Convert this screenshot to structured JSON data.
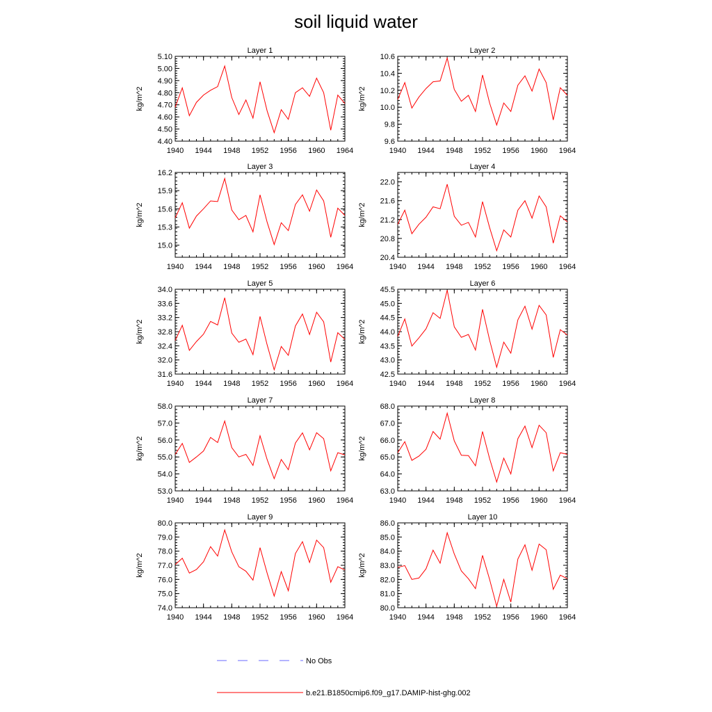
{
  "chart_data": {
    "type": "line",
    "title": "soil liquid water",
    "ylabel": "kg/m^2",
    "x_range": [
      1940,
      1964
    ],
    "x_ticks": [
      "1940",
      "1944",
      "1948",
      "1952",
      "1956",
      "1960",
      "1964"
    ],
    "years": [
      1940,
      1941,
      1942,
      1943,
      1944,
      1945,
      1946,
      1947,
      1948,
      1949,
      1950,
      1951,
      1952,
      1953,
      1954,
      1955,
      1956,
      1957,
      1958,
      1959,
      1960,
      1961,
      1962,
      1963,
      1964
    ],
    "line_color": "#ff0000",
    "legend": {
      "placement": "bottom-center",
      "entries": [
        {
          "label": "No Obs",
          "color": "#6a6aff",
          "style": "dashed"
        },
        {
          "label": "b.e21.B1850cmip6.f09_g17.DAMIP-hist-ghg.002",
          "color": "#ff0000",
          "style": "solid"
        }
      ]
    },
    "panels": [
      {
        "name": "Layer 1",
        "ylim": [
          4.4,
          5.1
        ],
        "y_ticks": [
          "4.40",
          "4.50",
          "4.60",
          "4.70",
          "4.80",
          "4.90",
          "5.00",
          "5.10"
        ],
        "values": [
          4.68,
          4.84,
          4.61,
          4.72,
          4.78,
          4.82,
          4.85,
          5.02,
          4.76,
          4.62,
          4.74,
          4.59,
          4.89,
          4.65,
          4.47,
          4.66,
          4.58,
          4.8,
          4.84,
          4.77,
          4.92,
          4.8,
          4.49,
          4.78,
          4.71
        ]
      },
      {
        "name": "Layer 2",
        "ylim": [
          9.6,
          10.6
        ],
        "y_ticks": [
          "9.6",
          "9.8",
          "10.0",
          "10.2",
          "10.4",
          "10.6"
        ],
        "values": [
          10.09,
          10.29,
          9.99,
          10.12,
          10.22,
          10.3,
          10.31,
          10.58,
          10.21,
          10.07,
          10.14,
          9.95,
          10.38,
          10.05,
          9.79,
          10.05,
          9.95,
          10.26,
          10.37,
          10.19,
          10.45,
          10.29,
          9.85,
          10.23,
          10.14
        ]
      },
      {
        "name": "Layer 3",
        "ylim": [
          14.8,
          16.2
        ],
        "y_ticks": [
          "15.0",
          "15.3",
          "15.6",
          "15.9",
          "16.2"
        ],
        "values": [
          15.45,
          15.7,
          15.28,
          15.48,
          15.6,
          15.73,
          15.72,
          16.1,
          15.58,
          15.42,
          15.49,
          15.22,
          15.83,
          15.38,
          15.01,
          15.37,
          15.24,
          15.67,
          15.83,
          15.56,
          15.91,
          15.73,
          15.13,
          15.61,
          15.49
        ]
      },
      {
        "name": "Layer 4",
        "ylim": [
          20.4,
          22.2
        ],
        "y_ticks": [
          "20.4",
          "20.8",
          "21.2",
          "21.6",
          "22.0"
        ],
        "values": [
          21.1,
          21.4,
          20.9,
          21.1,
          21.25,
          21.47,
          21.43,
          21.95,
          21.27,
          21.08,
          21.14,
          20.83,
          21.58,
          21.03,
          20.54,
          20.98,
          20.83,
          21.4,
          21.6,
          21.23,
          21.7,
          21.47,
          20.7,
          21.28,
          21.15
        ]
      },
      {
        "name": "Layer 5",
        "ylim": [
          31.6,
          34.0
        ],
        "y_ticks": [
          "31.6",
          "32.0",
          "32.4",
          "32.8",
          "33.2",
          "33.6",
          "34.0"
        ],
        "values": [
          32.55,
          32.98,
          32.27,
          32.52,
          32.73,
          33.09,
          32.99,
          33.76,
          32.76,
          32.5,
          32.59,
          32.15,
          33.23,
          32.43,
          31.72,
          32.38,
          32.13,
          32.96,
          33.3,
          32.72,
          33.35,
          33.08,
          31.94,
          32.77,
          32.58
        ]
      },
      {
        "name": "Layer 6",
        "ylim": [
          42.5,
          45.5
        ],
        "y_ticks": [
          "42.5",
          "43.0",
          "43.5",
          "44.0",
          "44.5",
          "45.0",
          "45.5"
        ],
        "values": [
          43.83,
          44.45,
          43.49,
          43.78,
          44.1,
          44.67,
          44.47,
          45.47,
          44.17,
          43.8,
          43.9,
          43.35,
          44.79,
          43.7,
          42.74,
          43.63,
          43.24,
          44.42,
          44.9,
          44.09,
          44.93,
          44.59,
          43.09,
          44.07,
          43.88
        ]
      },
      {
        "name": "Layer 7",
        "ylim": [
          53.0,
          58.0
        ],
        "y_ticks": [
          "53.0",
          "54.0",
          "55.0",
          "56.0",
          "57.0",
          "58.0"
        ],
        "values": [
          55.15,
          55.8,
          54.68,
          55.0,
          55.35,
          56.15,
          55.85,
          57.12,
          55.55,
          55.0,
          55.15,
          54.5,
          56.25,
          54.85,
          53.72,
          54.85,
          54.25,
          55.82,
          56.42,
          55.42,
          56.43,
          56.08,
          54.18,
          55.25,
          55.12
        ]
      },
      {
        "name": "Layer 8",
        "ylim": [
          63.0,
          68.0
        ],
        "y_ticks": [
          "63.0",
          "64.0",
          "65.0",
          "66.0",
          "67.0",
          "68.0"
        ],
        "values": [
          65.25,
          65.9,
          64.8,
          65.05,
          65.45,
          66.5,
          66.05,
          67.58,
          65.95,
          65.1,
          65.08,
          64.48,
          66.5,
          64.9,
          63.52,
          64.93,
          64.0,
          66.08,
          66.82,
          65.55,
          66.87,
          66.43,
          64.18,
          65.25,
          65.15
        ]
      },
      {
        "name": "Layer 9",
        "ylim": [
          74.0,
          80.0
        ],
        "y_ticks": [
          "74.0",
          "75.0",
          "76.0",
          "77.0",
          "78.0",
          "79.0",
          "80.0"
        ],
        "values": [
          77.05,
          77.5,
          76.45,
          76.7,
          77.25,
          78.32,
          77.65,
          79.5,
          77.95,
          76.9,
          76.58,
          75.95,
          78.25,
          76.45,
          74.82,
          76.55,
          75.2,
          77.83,
          78.67,
          77.2,
          78.78,
          78.25,
          75.8,
          76.9,
          76.67
        ]
      },
      {
        "name": "Layer 10",
        "ylim": [
          80.0,
          86.0
        ],
        "y_ticks": [
          "80.0",
          "81.0",
          "82.0",
          "83.0",
          "84.0",
          "85.0",
          "86.0"
        ],
        "values": [
          82.85,
          82.98,
          82.0,
          82.1,
          82.75,
          84.07,
          83.15,
          85.3,
          83.8,
          82.6,
          82.05,
          81.35,
          83.7,
          82.0,
          80.1,
          82.0,
          80.4,
          83.45,
          84.45,
          82.65,
          84.5,
          84.1,
          81.3,
          82.3,
          82.05
        ]
      }
    ]
  }
}
